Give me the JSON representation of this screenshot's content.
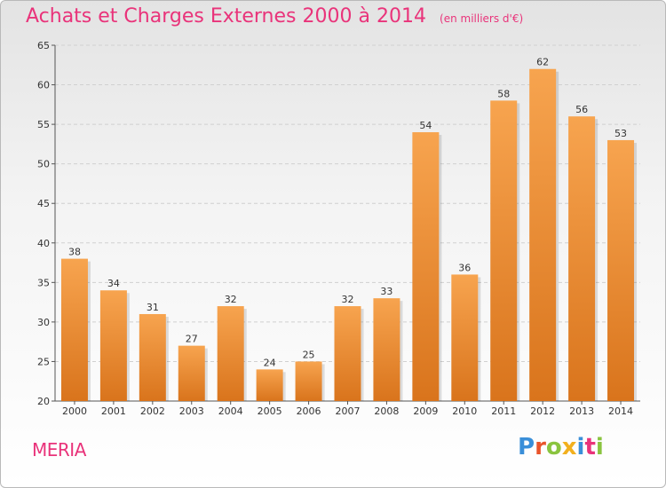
{
  "header": {
    "title": "Achats et Charges Externes 2000 à 2014",
    "unit": "(en milliers d'€)"
  },
  "footer": {
    "place": "MERIA",
    "brand": "Proxiti"
  },
  "colors": {
    "bar_top": "#f7a44f",
    "bar_bottom": "#d9741c",
    "accent": "#e9337a",
    "grid": "#d0d0d0"
  },
  "chart_data": {
    "type": "bar",
    "title": "Achats et Charges Externes 2000 à 2014",
    "subtitle": "(en milliers d'€)",
    "categories": [
      "2000",
      "2001",
      "2002",
      "2003",
      "2004",
      "2005",
      "2006",
      "2007",
      "2008",
      "2009",
      "2010",
      "2011",
      "2012",
      "2013",
      "2014"
    ],
    "values": [
      38,
      34,
      31,
      27,
      32,
      24,
      25,
      32,
      33,
      54,
      36,
      58,
      62,
      56,
      53
    ],
    "ylim": [
      20,
      65
    ],
    "yticks": [
      20,
      25,
      30,
      35,
      40,
      45,
      50,
      55,
      60,
      65
    ],
    "grid": "horizontal dashed",
    "legend": "none"
  }
}
